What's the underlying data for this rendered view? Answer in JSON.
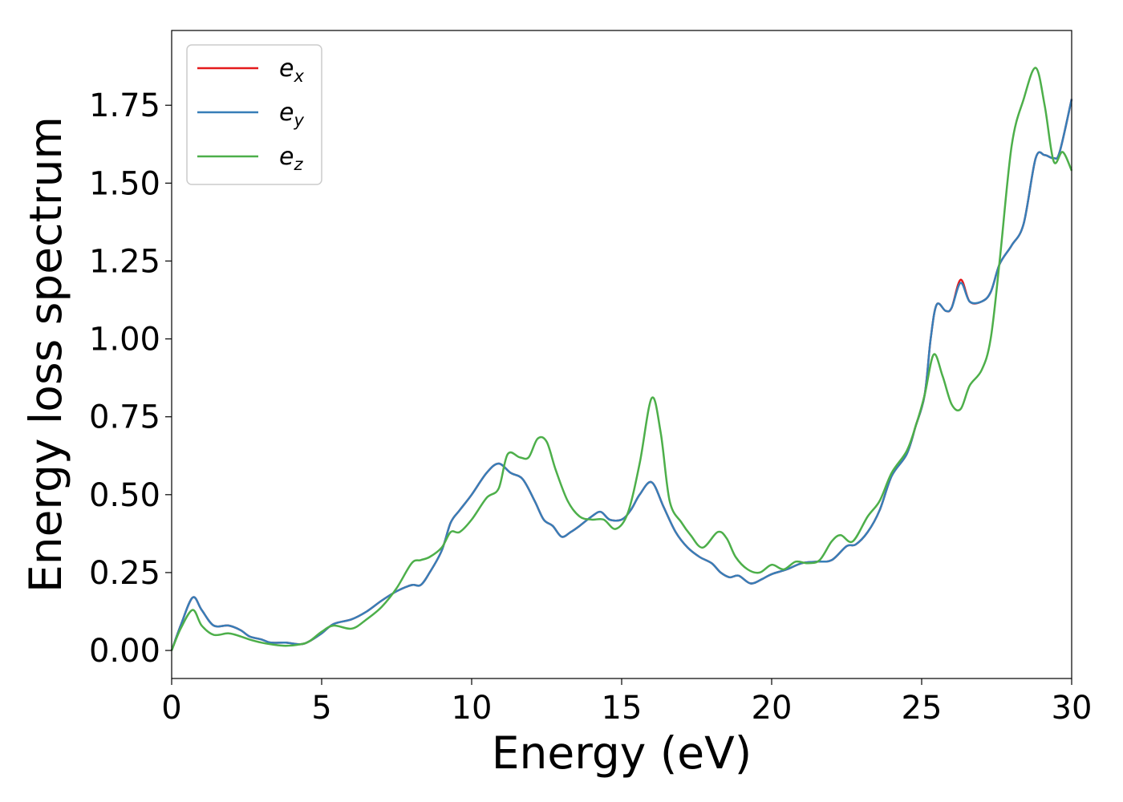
{
  "chart_data": {
    "type": "line",
    "xlabel": "Energy (eV)",
    "ylabel": "Energy loss spectrum",
    "xlim": [
      0,
      30
    ],
    "ylim": [
      -0.09,
      1.99
    ],
    "x_ticks": [
      0,
      5,
      10,
      15,
      20,
      25,
      30
    ],
    "x_tick_labels": [
      "0",
      "5",
      "10",
      "15",
      "20",
      "25",
      "30"
    ],
    "y_ticks": [
      0,
      0.25,
      0.5,
      0.75,
      1.0,
      1.25,
      1.5,
      1.75
    ],
    "y_tick_labels": [
      "0.00",
      "0.25",
      "0.50",
      "0.75",
      "1.00",
      "1.25",
      "1.50",
      "1.75"
    ],
    "grid": false,
    "legend_position": "top-left",
    "series": [
      {
        "name": "e",
        "subscript": "x",
        "color": "#e41a1c",
        "points": [
          [
            0,
            0
          ],
          [
            0.3,
            0.08
          ],
          [
            0.7,
            0.17
          ],
          [
            1.0,
            0.13
          ],
          [
            1.4,
            0.08
          ],
          [
            1.9,
            0.08
          ],
          [
            2.3,
            0.065
          ],
          [
            2.6,
            0.045
          ],
          [
            3.0,
            0.035
          ],
          [
            3.3,
            0.025
          ],
          [
            3.8,
            0.025
          ],
          [
            4.3,
            0.02
          ],
          [
            4.6,
            0.03
          ],
          [
            5.0,
            0.055
          ],
          [
            5.4,
            0.085
          ],
          [
            6.0,
            0.1
          ],
          [
            6.5,
            0.125
          ],
          [
            7.0,
            0.16
          ],
          [
            7.5,
            0.19
          ],
          [
            8.0,
            0.21
          ],
          [
            8.3,
            0.21
          ],
          [
            8.6,
            0.25
          ],
          [
            9.0,
            0.32
          ],
          [
            9.3,
            0.41
          ],
          [
            9.6,
            0.45
          ],
          [
            10.0,
            0.5
          ],
          [
            10.5,
            0.57
          ],
          [
            10.9,
            0.6
          ],
          [
            11.3,
            0.57
          ],
          [
            11.7,
            0.55
          ],
          [
            12.1,
            0.48
          ],
          [
            12.4,
            0.42
          ],
          [
            12.7,
            0.4
          ],
          [
            13.0,
            0.365
          ],
          [
            13.3,
            0.38
          ],
          [
            13.6,
            0.4
          ],
          [
            14.0,
            0.43
          ],
          [
            14.3,
            0.445
          ],
          [
            14.6,
            0.42
          ],
          [
            15.0,
            0.42
          ],
          [
            15.3,
            0.45
          ],
          [
            15.6,
            0.5
          ],
          [
            16.0,
            0.54
          ],
          [
            16.4,
            0.46
          ],
          [
            16.8,
            0.38
          ],
          [
            17.2,
            0.33
          ],
          [
            17.6,
            0.3
          ],
          [
            18.0,
            0.28
          ],
          [
            18.3,
            0.25
          ],
          [
            18.6,
            0.235
          ],
          [
            18.9,
            0.24
          ],
          [
            19.3,
            0.215
          ],
          [
            19.7,
            0.23
          ],
          [
            20.0,
            0.245
          ],
          [
            20.5,
            0.26
          ],
          [
            21.0,
            0.28
          ],
          [
            21.5,
            0.285
          ],
          [
            22.0,
            0.29
          ],
          [
            22.5,
            0.335
          ],
          [
            22.8,
            0.34
          ],
          [
            23.2,
            0.38
          ],
          [
            23.6,
            0.45
          ],
          [
            24.0,
            0.56
          ],
          [
            24.5,
            0.63
          ],
          [
            24.8,
            0.72
          ],
          [
            25.1,
            0.82
          ],
          [
            25.3,
            1.0
          ],
          [
            25.5,
            1.11
          ],
          [
            25.8,
            1.09
          ],
          [
            26.0,
            1.1
          ],
          [
            26.3,
            1.19
          ],
          [
            26.6,
            1.12
          ],
          [
            27.0,
            1.12
          ],
          [
            27.3,
            1.15
          ],
          [
            27.6,
            1.24
          ],
          [
            28.0,
            1.3
          ],
          [
            28.4,
            1.37
          ],
          [
            28.8,
            1.58
          ],
          [
            29.1,
            1.59
          ],
          [
            29.4,
            1.58
          ],
          [
            29.6,
            1.6
          ],
          [
            30.0,
            1.77
          ]
        ]
      },
      {
        "name": "e",
        "subscript": "y",
        "color": "#377eb8",
        "points": [
          [
            0,
            0
          ],
          [
            0.3,
            0.08
          ],
          [
            0.7,
            0.17
          ],
          [
            1.0,
            0.13
          ],
          [
            1.4,
            0.08
          ],
          [
            1.9,
            0.08
          ],
          [
            2.3,
            0.065
          ],
          [
            2.6,
            0.045
          ],
          [
            3.0,
            0.035
          ],
          [
            3.3,
            0.025
          ],
          [
            3.8,
            0.025
          ],
          [
            4.3,
            0.02
          ],
          [
            4.6,
            0.03
          ],
          [
            5.0,
            0.055
          ],
          [
            5.4,
            0.085
          ],
          [
            6.0,
            0.1
          ],
          [
            6.5,
            0.125
          ],
          [
            7.0,
            0.16
          ],
          [
            7.5,
            0.19
          ],
          [
            8.0,
            0.21
          ],
          [
            8.3,
            0.21
          ],
          [
            8.6,
            0.25
          ],
          [
            9.0,
            0.32
          ],
          [
            9.3,
            0.41
          ],
          [
            9.6,
            0.45
          ],
          [
            10.0,
            0.5
          ],
          [
            10.5,
            0.57
          ],
          [
            10.9,
            0.6
          ],
          [
            11.3,
            0.57
          ],
          [
            11.7,
            0.55
          ],
          [
            12.1,
            0.48
          ],
          [
            12.4,
            0.42
          ],
          [
            12.7,
            0.4
          ],
          [
            13.0,
            0.365
          ],
          [
            13.3,
            0.38
          ],
          [
            13.6,
            0.4
          ],
          [
            14.0,
            0.43
          ],
          [
            14.3,
            0.445
          ],
          [
            14.6,
            0.42
          ],
          [
            15.0,
            0.42
          ],
          [
            15.3,
            0.45
          ],
          [
            15.6,
            0.5
          ],
          [
            16.0,
            0.54
          ],
          [
            16.4,
            0.46
          ],
          [
            16.8,
            0.38
          ],
          [
            17.2,
            0.33
          ],
          [
            17.6,
            0.3
          ],
          [
            18.0,
            0.28
          ],
          [
            18.3,
            0.25
          ],
          [
            18.6,
            0.235
          ],
          [
            18.9,
            0.24
          ],
          [
            19.3,
            0.215
          ],
          [
            19.7,
            0.23
          ],
          [
            20.0,
            0.245
          ],
          [
            20.5,
            0.26
          ],
          [
            21.0,
            0.28
          ],
          [
            21.5,
            0.285
          ],
          [
            22.0,
            0.29
          ],
          [
            22.5,
            0.335
          ],
          [
            22.8,
            0.34
          ],
          [
            23.2,
            0.38
          ],
          [
            23.6,
            0.45
          ],
          [
            24.0,
            0.56
          ],
          [
            24.5,
            0.63
          ],
          [
            24.8,
            0.72
          ],
          [
            25.1,
            0.82
          ],
          [
            25.3,
            1.0
          ],
          [
            25.5,
            1.11
          ],
          [
            25.8,
            1.09
          ],
          [
            26.0,
            1.1
          ],
          [
            26.3,
            1.18
          ],
          [
            26.6,
            1.12
          ],
          [
            27.0,
            1.12
          ],
          [
            27.3,
            1.15
          ],
          [
            27.6,
            1.24
          ],
          [
            28.0,
            1.3
          ],
          [
            28.4,
            1.37
          ],
          [
            28.8,
            1.58
          ],
          [
            29.1,
            1.59
          ],
          [
            29.4,
            1.58
          ],
          [
            29.6,
            1.6
          ],
          [
            30.0,
            1.77
          ]
        ]
      },
      {
        "name": "e",
        "subscript": "z",
        "color": "#4daf4a",
        "points": [
          [
            0,
            0
          ],
          [
            0.3,
            0.07
          ],
          [
            0.7,
            0.13
          ],
          [
            1.0,
            0.08
          ],
          [
            1.4,
            0.05
          ],
          [
            1.9,
            0.055
          ],
          [
            2.3,
            0.045
          ],
          [
            2.6,
            0.035
          ],
          [
            3.0,
            0.025
          ],
          [
            3.3,
            0.02
          ],
          [
            3.8,
            0.015
          ],
          [
            4.3,
            0.02
          ],
          [
            4.6,
            0.03
          ],
          [
            5.0,
            0.06
          ],
          [
            5.4,
            0.08
          ],
          [
            6.0,
            0.07
          ],
          [
            6.5,
            0.1
          ],
          [
            7.0,
            0.14
          ],
          [
            7.5,
            0.2
          ],
          [
            8.0,
            0.28
          ],
          [
            8.3,
            0.29
          ],
          [
            8.6,
            0.3
          ],
          [
            9.0,
            0.33
          ],
          [
            9.3,
            0.38
          ],
          [
            9.6,
            0.38
          ],
          [
            10.0,
            0.42
          ],
          [
            10.5,
            0.49
          ],
          [
            10.9,
            0.52
          ],
          [
            11.2,
            0.63
          ],
          [
            11.6,
            0.62
          ],
          [
            11.9,
            0.62
          ],
          [
            12.2,
            0.68
          ],
          [
            12.5,
            0.67
          ],
          [
            12.8,
            0.58
          ],
          [
            13.2,
            0.48
          ],
          [
            13.6,
            0.43
          ],
          [
            14.0,
            0.42
          ],
          [
            14.4,
            0.42
          ],
          [
            14.8,
            0.39
          ],
          [
            15.2,
            0.44
          ],
          [
            15.6,
            0.6
          ],
          [
            16.0,
            0.81
          ],
          [
            16.3,
            0.7
          ],
          [
            16.6,
            0.48
          ],
          [
            17.0,
            0.41
          ],
          [
            17.3,
            0.37
          ],
          [
            17.7,
            0.33
          ],
          [
            18.2,
            0.38
          ],
          [
            18.5,
            0.36
          ],
          [
            18.8,
            0.3
          ],
          [
            19.2,
            0.26
          ],
          [
            19.6,
            0.25
          ],
          [
            20.0,
            0.275
          ],
          [
            20.4,
            0.26
          ],
          [
            20.8,
            0.285
          ],
          [
            21.2,
            0.28
          ],
          [
            21.6,
            0.29
          ],
          [
            22.0,
            0.35
          ],
          [
            22.3,
            0.37
          ],
          [
            22.7,
            0.35
          ],
          [
            23.2,
            0.43
          ],
          [
            23.6,
            0.48
          ],
          [
            24.0,
            0.57
          ],
          [
            24.5,
            0.64
          ],
          [
            24.8,
            0.72
          ],
          [
            25.1,
            0.82
          ],
          [
            25.4,
            0.95
          ],
          [
            25.7,
            0.88
          ],
          [
            26.0,
            0.79
          ],
          [
            26.3,
            0.775
          ],
          [
            26.6,
            0.85
          ],
          [
            27.0,
            0.9
          ],
          [
            27.3,
            1.0
          ],
          [
            27.6,
            1.25
          ],
          [
            28.0,
            1.62
          ],
          [
            28.4,
            1.77
          ],
          [
            28.8,
            1.87
          ],
          [
            29.1,
            1.75
          ],
          [
            29.4,
            1.57
          ],
          [
            29.7,
            1.6
          ],
          [
            30.0,
            1.54
          ]
        ]
      }
    ]
  }
}
